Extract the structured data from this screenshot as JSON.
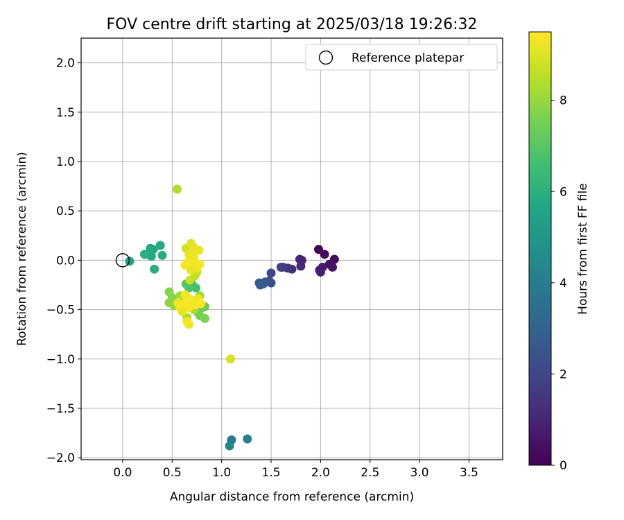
{
  "chart_data": {
    "type": "scatter",
    "title": "FOV centre drift starting at 2025/03/18 19:26:32",
    "xlabel": "Angular distance from reference (arcmin)",
    "ylabel": "Rotation from reference (arcmin)",
    "xlim": [
      -0.42,
      3.84
    ],
    "ylim": [
      -2.02,
      2.25
    ],
    "xticks": [
      "0.0",
      "0.5",
      "1.0",
      "1.5",
      "2.0",
      "2.5",
      "3.0",
      "3.5"
    ],
    "xtick_values": [
      0,
      0.5,
      1.0,
      1.5,
      2.0,
      2.5,
      3.0,
      3.5
    ],
    "yticks": [
      "2.0",
      "1.5",
      "1.0",
      "0.5",
      "0.0",
      "−0.5",
      "−1.0",
      "−1.5",
      "−2.0"
    ],
    "ytick_values": [
      2.0,
      1.5,
      1.0,
      0.5,
      0.0,
      -0.5,
      -1.0,
      -1.5,
      -2.0
    ],
    "grid": true,
    "colormap": "viridis",
    "colorbar": {
      "label": "Hours from first FF file",
      "range": [
        0,
        9.5
      ],
      "ticks": [
        "0",
        "2",
        "4",
        "6",
        "8"
      ],
      "tick_values": [
        0,
        2,
        4,
        6,
        8
      ]
    },
    "legend": {
      "position": "top-right",
      "entries": [
        {
          "label": "Reference platepar",
          "marker": "open-circle"
        }
      ]
    },
    "reference_point": {
      "x": 0.0,
      "y": 0.0
    },
    "points": [
      {
        "x": 1.98,
        "y": 0.11,
        "h": 0.1
      },
      {
        "x": 2.04,
        "y": 0.06,
        "h": 0.2
      },
      {
        "x": 2.14,
        "y": 0.01,
        "h": 0.3
      },
      {
        "x": 2.09,
        "y": -0.04,
        "h": 0.4
      },
      {
        "x": 2.12,
        "y": -0.07,
        "h": 0.5
      },
      {
        "x": 2.02,
        "y": -0.07,
        "h": 0.6
      },
      {
        "x": 1.99,
        "y": -0.1,
        "h": 0.7
      },
      {
        "x": 2.0,
        "y": -0.12,
        "h": 0.8
      },
      {
        "x": 1.81,
        "y": 0.0,
        "h": 0.9
      },
      {
        "x": 1.79,
        "y": 0.01,
        "h": 1.0
      },
      {
        "x": 1.8,
        "y": -0.06,
        "h": 1.1
      },
      {
        "x": 1.71,
        "y": -0.09,
        "h": 1.25
      },
      {
        "x": 1.67,
        "y": -0.08,
        "h": 1.4
      },
      {
        "x": 1.62,
        "y": -0.07,
        "h": 1.6
      },
      {
        "x": 1.6,
        "y": -0.07,
        "h": 1.8
      },
      {
        "x": 1.5,
        "y": -0.13,
        "h": 2.0
      },
      {
        "x": 1.48,
        "y": -0.21,
        "h": 2.2
      },
      {
        "x": 1.5,
        "y": -0.23,
        "h": 2.35
      },
      {
        "x": 1.44,
        "y": -0.22,
        "h": 2.5
      },
      {
        "x": 1.42,
        "y": -0.24,
        "h": 2.6
      },
      {
        "x": 1.38,
        "y": -0.23,
        "h": 2.7
      },
      {
        "x": 1.39,
        "y": -0.25,
        "h": 2.8
      },
      {
        "x": 1.1,
        "y": -1.82,
        "h": 3.9
      },
      {
        "x": 1.26,
        "y": -1.81,
        "h": 4.1
      },
      {
        "x": 1.08,
        "y": -1.88,
        "h": 4.3
      },
      {
        "x": 0.07,
        "y": -0.01,
        "h": 5.5
      },
      {
        "x": 0.25,
        "y": 0.06,
        "h": 5.6
      },
      {
        "x": 0.28,
        "y": 0.12,
        "h": 5.65
      },
      {
        "x": 0.31,
        "y": 0.11,
        "h": 5.7
      },
      {
        "x": 0.29,
        "y": 0.04,
        "h": 5.75
      },
      {
        "x": 0.38,
        "y": 0.15,
        "h": 5.8
      },
      {
        "x": 0.4,
        "y": 0.05,
        "h": 5.85
      },
      {
        "x": 0.32,
        "y": -0.09,
        "h": 5.9
      },
      {
        "x": 0.22,
        "y": 0.06,
        "h": 5.95
      },
      {
        "x": 0.7,
        "y": -0.24,
        "h": 6.5
      },
      {
        "x": 0.74,
        "y": -0.28,
        "h": 6.7
      },
      {
        "x": 0.67,
        "y": -0.28,
        "h": 6.8
      },
      {
        "x": 0.64,
        "y": -0.24,
        "h": 6.9
      },
      {
        "x": 0.8,
        "y": -0.48,
        "h": 7.1
      },
      {
        "x": 0.83,
        "y": -0.47,
        "h": 7.3
      },
      {
        "x": 0.76,
        "y": -0.53,
        "h": 7.4
      },
      {
        "x": 0.78,
        "y": -0.56,
        "h": 7.5
      },
      {
        "x": 0.83,
        "y": -0.59,
        "h": 7.6
      },
      {
        "x": 0.47,
        "y": -0.32,
        "h": 7.7
      },
      {
        "x": 0.5,
        "y": -0.38,
        "h": 7.8
      },
      {
        "x": 0.47,
        "y": -0.43,
        "h": 7.9
      },
      {
        "x": 0.52,
        "y": -0.46,
        "h": 8.0
      },
      {
        "x": 0.58,
        "y": -0.36,
        "h": 8.1
      },
      {
        "x": 0.6,
        "y": -0.4,
        "h": 8.15
      },
      {
        "x": 0.78,
        "y": -0.36,
        "h": 8.2
      },
      {
        "x": 0.72,
        "y": -0.5,
        "h": 8.25
      },
      {
        "x": 0.65,
        "y": -0.58,
        "h": 8.3
      },
      {
        "x": 0.55,
        "y": 0.72,
        "h": 8.4
      },
      {
        "x": 1.09,
        "y": -1.0,
        "h": 8.9
      },
      {
        "x": 0.75,
        "y": -0.12,
        "h": 8.5
      },
      {
        "x": 0.73,
        "y": -0.16,
        "h": 8.6
      },
      {
        "x": 0.68,
        "y": -0.2,
        "h": 8.7
      },
      {
        "x": 0.64,
        "y": 0.12,
        "h": 8.8
      },
      {
        "x": 0.69,
        "y": 0.17,
        "h": 9.0
      },
      {
        "x": 0.71,
        "y": 0.14,
        "h": 9.1
      },
      {
        "x": 0.73,
        "y": 0.11,
        "h": 9.15
      },
      {
        "x": 0.77,
        "y": 0.1,
        "h": 9.2
      },
      {
        "x": 0.67,
        "y": 0.06,
        "h": 9.25
      },
      {
        "x": 0.72,
        "y": 0.03,
        "h": 9.3
      },
      {
        "x": 0.66,
        "y": -0.02,
        "h": 9.35
      },
      {
        "x": 0.71,
        "y": -0.05,
        "h": 9.4
      },
      {
        "x": 0.78,
        "y": -0.04,
        "h": 9.45
      },
      {
        "x": 0.63,
        "y": -0.05,
        "h": 9.4
      },
      {
        "x": 0.75,
        "y": -0.08,
        "h": 9.3
      },
      {
        "x": 0.69,
        "y": -0.1,
        "h": 9.2
      },
      {
        "x": 0.56,
        "y": -0.43,
        "h": 9.3
      },
      {
        "x": 0.58,
        "y": -0.48,
        "h": 9.35
      },
      {
        "x": 0.62,
        "y": -0.44,
        "h": 9.4
      },
      {
        "x": 0.66,
        "y": -0.38,
        "h": 9.45
      },
      {
        "x": 0.7,
        "y": -0.41,
        "h": 9.4
      },
      {
        "x": 0.74,
        "y": -0.45,
        "h": 9.35
      },
      {
        "x": 0.76,
        "y": -0.39,
        "h": 9.3
      },
      {
        "x": 0.79,
        "y": -0.44,
        "h": 9.45
      },
      {
        "x": 0.67,
        "y": -0.48,
        "h": 9.4
      },
      {
        "x": 0.63,
        "y": -0.35,
        "h": 9.3
      },
      {
        "x": 0.6,
        "y": -0.52,
        "h": 9.2
      },
      {
        "x": 0.65,
        "y": -0.62,
        "h": 9.3
      },
      {
        "x": 0.67,
        "y": -0.65,
        "h": 9.4
      }
    ]
  }
}
